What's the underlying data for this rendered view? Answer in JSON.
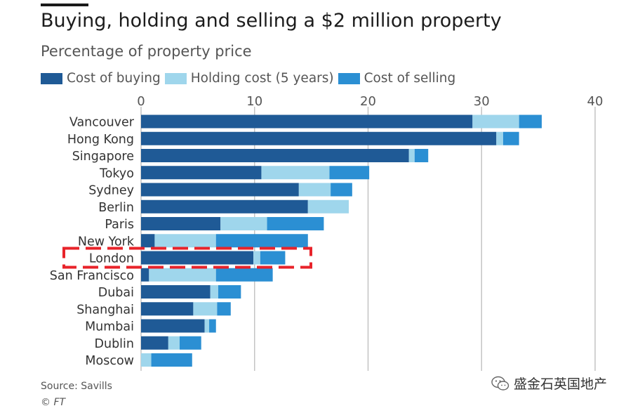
{
  "header": {
    "title": "Buying, holding and selling a $2 million property",
    "subtitle": "Percentage of property price"
  },
  "legend": [
    {
      "label": "Cost of buying",
      "color": "#1f5a96"
    },
    {
      "label": "Holding cost (5 years)",
      "color": "#9fd6ec"
    },
    {
      "label": "Cost of selling",
      "color": "#2b8fd3"
    }
  ],
  "chart_data": {
    "type": "bar",
    "orientation": "horizontal",
    "stacked": true,
    "categories": [
      "Vancouver",
      "Hong Kong",
      "Singapore",
      "Tokyo",
      "Sydney",
      "Berlin",
      "Paris",
      "New York",
      "London",
      "San Francisco",
      "Dubai",
      "Shanghai",
      "Mumbai",
      "Dublin",
      "Moscow"
    ],
    "series": [
      {
        "name": "Cost of buying",
        "color": "#1f5a96",
        "values": [
          29.2,
          31.3,
          23.6,
          10.6,
          13.9,
          14.7,
          7.0,
          1.2,
          9.9,
          0.7,
          6.1,
          4.6,
          5.6,
          2.4,
          0.0
        ]
      },
      {
        "name": "Holding cost (5 years)",
        "color": "#9fd6ec",
        "values": [
          4.1,
          0.6,
          0.5,
          6.0,
          2.8,
          3.6,
          4.1,
          5.4,
          0.6,
          5.9,
          0.7,
          2.1,
          0.4,
          1.0,
          0.9
        ]
      },
      {
        "name": "Cost of selling",
        "color": "#2b8fd3",
        "values": [
          2.0,
          1.4,
          1.2,
          3.5,
          1.9,
          0.0,
          5.0,
          8.1,
          2.2,
          5.0,
          2.0,
          1.2,
          0.6,
          1.9,
          3.6
        ]
      }
    ],
    "xlim": [
      0,
      40
    ],
    "xticks": [
      0,
      10,
      20,
      30,
      40
    ],
    "xaxis_position": "top",
    "grid": true,
    "legend_position": "top-left",
    "annotations": [
      {
        "type": "dashed-box",
        "target": "London",
        "color": "#e8232a"
      }
    ]
  },
  "footer": {
    "source": "Source: Savills",
    "credit": "© FT"
  },
  "watermark": {
    "text": "盛金石英国地产",
    "icon": "wechat-icon"
  }
}
